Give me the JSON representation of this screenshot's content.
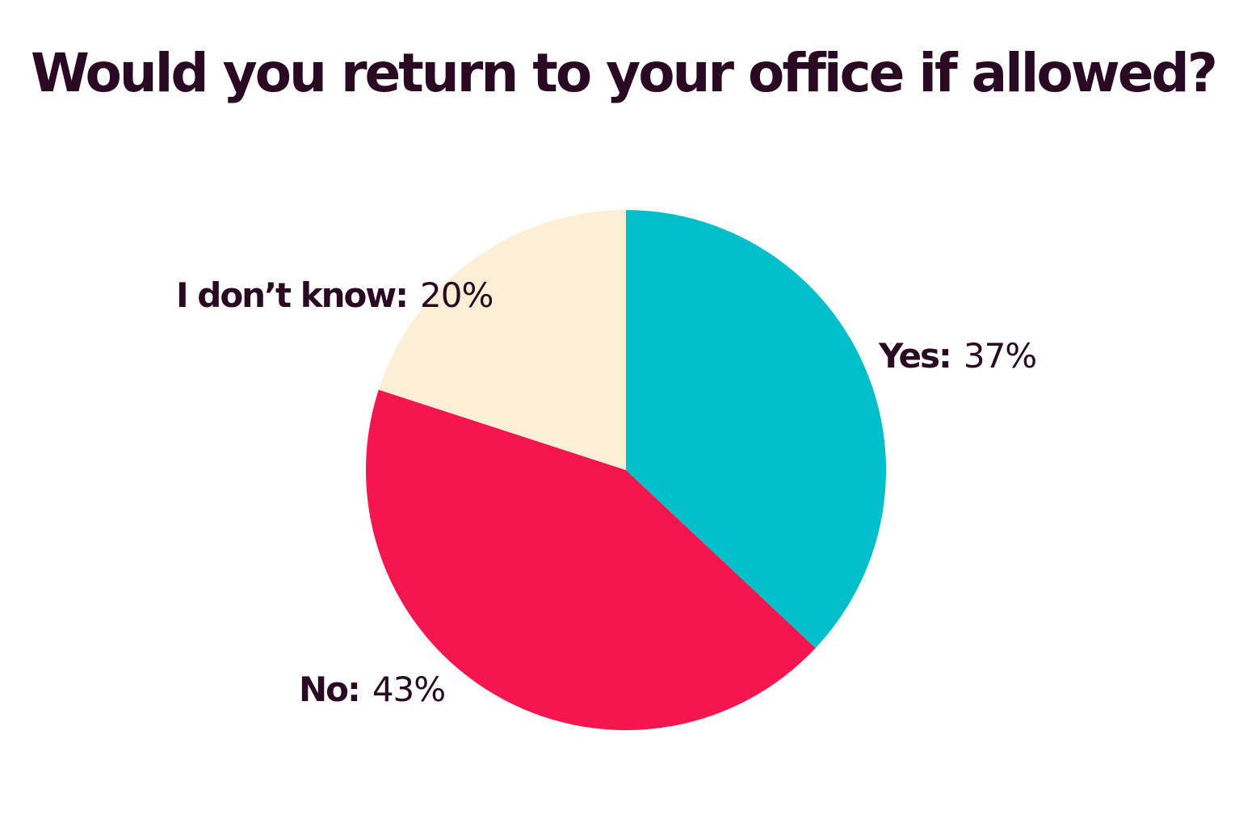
{
  "chart_data": {
    "type": "pie",
    "title": "Would you return to your office if allowed?",
    "slices": [
      {
        "label": "Yes:",
        "value": 37,
        "display": "37%",
        "color": "#00bfc8"
      },
      {
        "label": "No:",
        "value": 43,
        "display": "43%",
        "color": "#f5164f"
      },
      {
        "label": "I don’t know:",
        "value": 20,
        "display": "20%",
        "color": "#fcefd6"
      }
    ]
  }
}
